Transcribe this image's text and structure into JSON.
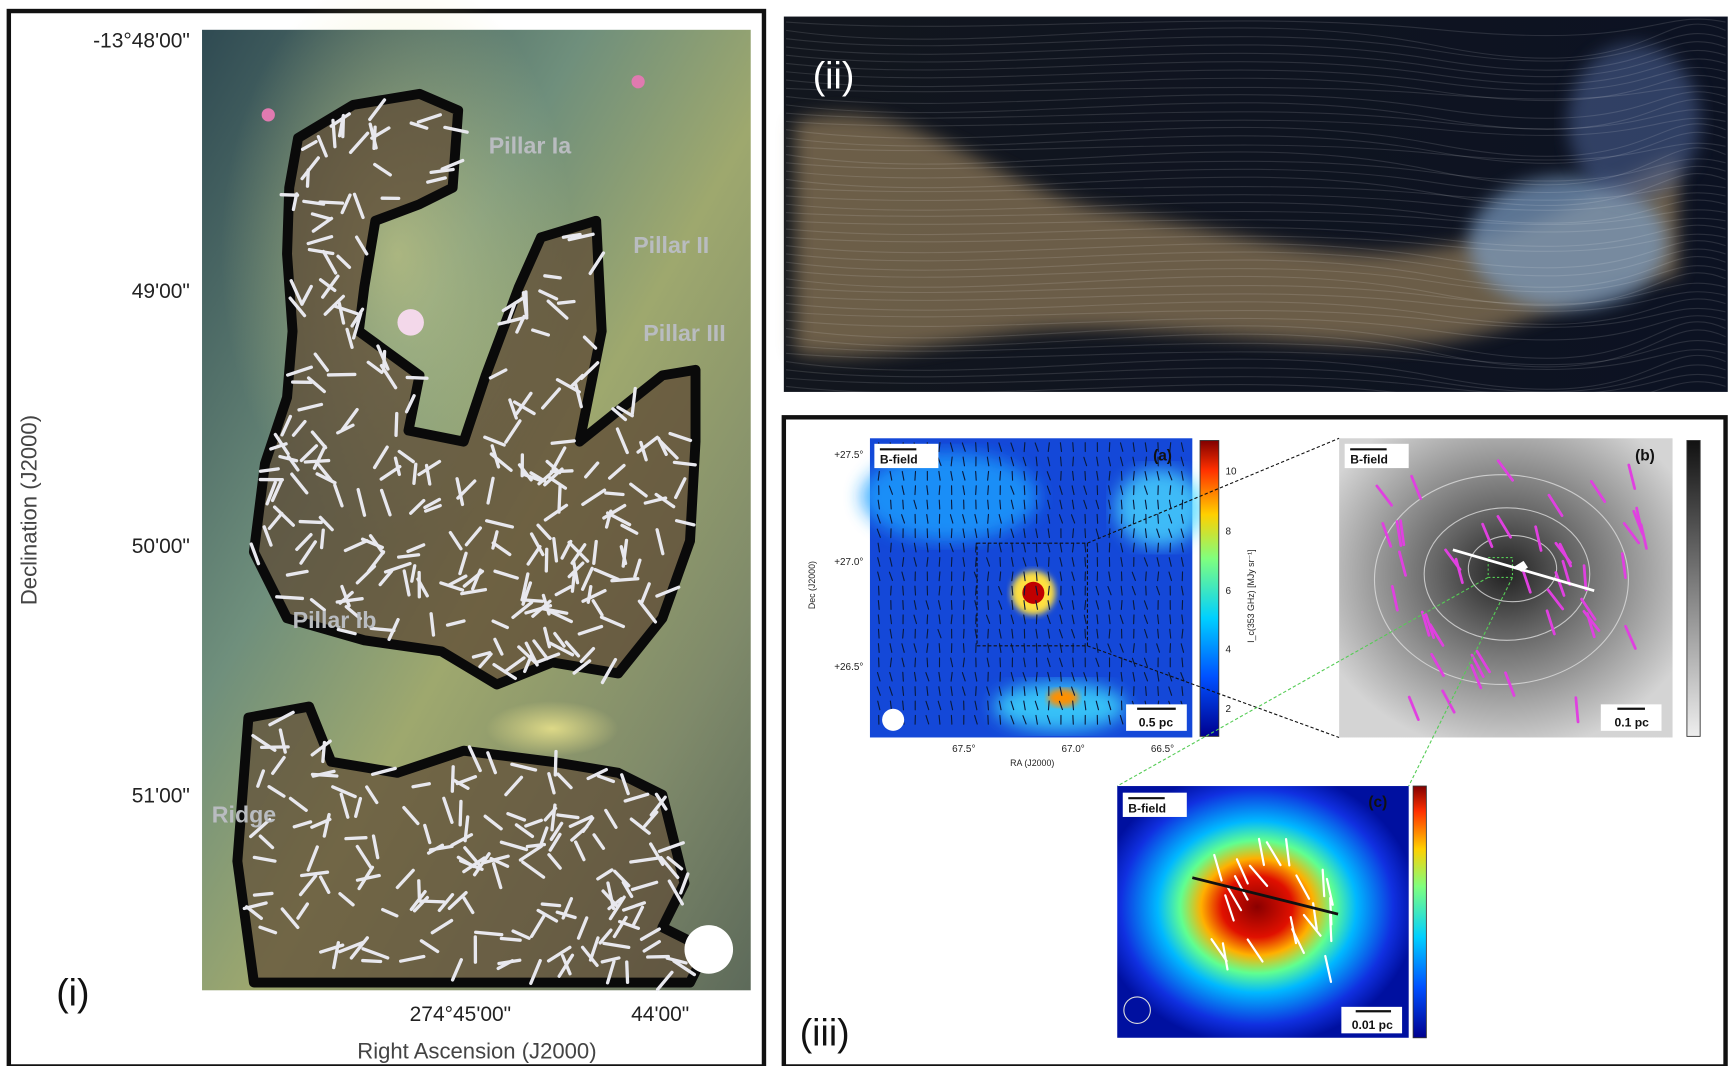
{
  "panel_i": {
    "label": "(i)",
    "y_ticks": [
      "-13°48'00\"",
      "49'00\"",
      "50'00\"",
      "51'00\""
    ],
    "x_ticks": [
      "274°45'00\"",
      "44'00\""
    ],
    "y_axis_label": "Declination (J2000)",
    "x_axis_label": "Right Ascension (J2000)",
    "regions": [
      "Pillar Ia",
      "Pillar II",
      "Pillar III",
      "Pillar Ib",
      "Ridge"
    ]
  },
  "panel_ii": {
    "label": "(ii)"
  },
  "panel_iii": {
    "label": "(iii)",
    "a": {
      "label": "(a)",
      "field_key": "B-field",
      "scale_bar": "0.5 pc",
      "y_ticks": [
        "+27.5°",
        "+27.0°",
        "+26.5°"
      ],
      "x_ticks": [
        "67.5°",
        "67.0°",
        "66.5°"
      ],
      "y_axis_label": "Dec (J2000)",
      "x_axis_label": "RA (J2000)",
      "colorbar_ticks": [
        "10",
        "8",
        "6",
        "4",
        "2"
      ],
      "colorbar_label": "I_c(353 GHz) [MJy sr⁻¹]"
    },
    "b": {
      "label": "(b)",
      "field_key": "B-field",
      "scale_bar": "0.1 pc"
    },
    "c": {
      "label": "(c)",
      "field_key": "B-field",
      "scale_bar": "0.01 pc"
    }
  }
}
